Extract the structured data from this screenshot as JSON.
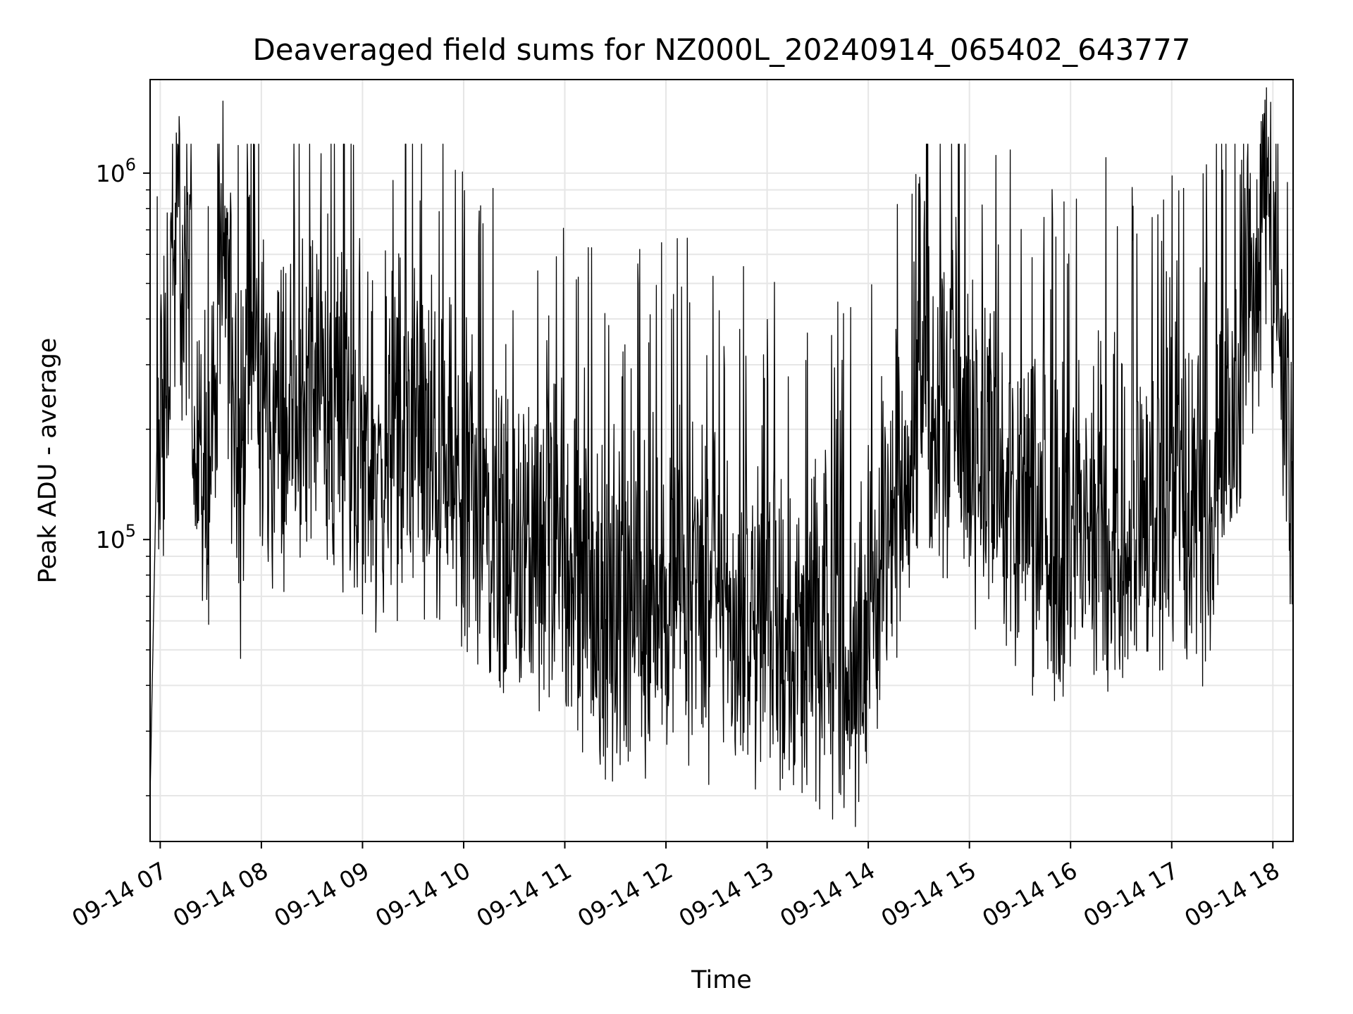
{
  "chart_data": {
    "type": "line",
    "title": "Deaveraged field sums for NZ000L_20240914_065402_643777",
    "xlabel": "Time",
    "ylabel": "Peak ADU - average",
    "yscale": "log",
    "ylim": [
      15000,
      1800000
    ],
    "xlim": [
      "2024-09-14 06:54",
      "2024-09-14 18:12"
    ],
    "grid": true,
    "line_color": "#000000",
    "grid_color": "#e6e6e6",
    "x_ticks": [
      {
        "value": "2024-09-14 07:00",
        "label": "09-14 07"
      },
      {
        "value": "2024-09-14 08:00",
        "label": "09-14 08"
      },
      {
        "value": "2024-09-14 09:00",
        "label": "09-14 09"
      },
      {
        "value": "2024-09-14 10:00",
        "label": "09-14 10"
      },
      {
        "value": "2024-09-14 11:00",
        "label": "09-14 11"
      },
      {
        "value": "2024-09-14 12:00",
        "label": "09-14 12"
      },
      {
        "value": "2024-09-14 13:00",
        "label": "09-14 13"
      },
      {
        "value": "2024-09-14 14:00",
        "label": "09-14 14"
      },
      {
        "value": "2024-09-14 15:00",
        "label": "09-14 15"
      },
      {
        "value": "2024-09-14 16:00",
        "label": "09-14 16"
      },
      {
        "value": "2024-09-14 17:00",
        "label": "09-14 17"
      },
      {
        "value": "2024-09-14 18:00",
        "label": "09-14 18"
      }
    ],
    "y_ticks": [
      {
        "value": 100000,
        "base": "10",
        "exp": "5"
      },
      {
        "value": 1000000,
        "base": "10",
        "exp": "6"
      }
    ],
    "series": [
      {
        "x": [
          "2024-09-14 06:54",
          "2024-09-14 06:58",
          "2024-09-14 07:03",
          "2024-09-14 07:08",
          "2024-09-14 07:13",
          "2024-09-14 07:18",
          "2024-09-14 07:23",
          "2024-09-14 07:28",
          "2024-09-14 07:33",
          "2024-09-14 07:38",
          "2024-09-14 07:43",
          "2024-09-14 07:48",
          "2024-09-14 07:53",
          "2024-09-14 07:58",
          "2024-09-14 08:05",
          "2024-09-14 08:15",
          "2024-09-14 08:25",
          "2024-09-14 08:35",
          "2024-09-14 08:45",
          "2024-09-14 08:55",
          "2024-09-14 09:10",
          "2024-09-14 09:25",
          "2024-09-14 09:40",
          "2024-09-14 09:55",
          "2024-09-14 10:10",
          "2024-09-14 10:25",
          "2024-09-14 10:40",
          "2024-09-14 10:55",
          "2024-09-14 11:10",
          "2024-09-14 11:25",
          "2024-09-14 11:40",
          "2024-09-14 11:55",
          "2024-09-14 12:10",
          "2024-09-14 12:25",
          "2024-09-14 12:40",
          "2024-09-14 12:55",
          "2024-09-14 13:10",
          "2024-09-14 13:25",
          "2024-09-14 13:40",
          "2024-09-14 13:55",
          "2024-09-14 14:10",
          "2024-09-14 14:25",
          "2024-09-14 14:40",
          "2024-09-14 14:55",
          "2024-09-14 15:10",
          "2024-09-14 15:25",
          "2024-09-14 15:40",
          "2024-09-14 15:55",
          "2024-09-14 16:10",
          "2024-09-14 16:25",
          "2024-09-14 16:40",
          "2024-09-14 16:55",
          "2024-09-14 17:10",
          "2024-09-14 17:25",
          "2024-09-14 17:35",
          "2024-09-14 17:45",
          "2024-09-14 17:55",
          "2024-09-14 18:00",
          "2024-09-14 18:05",
          "2024-09-14 18:12"
        ],
        "values": [
          20000,
          180000,
          250000,
          600000,
          550000,
          420000,
          220000,
          150000,
          250000,
          650000,
          300000,
          140000,
          500000,
          300000,
          200000,
          220000,
          250000,
          280000,
          230000,
          200000,
          150000,
          180000,
          170000,
          140000,
          120000,
          110000,
          95000,
          85000,
          80000,
          70000,
          68000,
          75000,
          85000,
          70000,
          65000,
          60000,
          58000,
          55000,
          52000,
          50000,
          110000,
          200000,
          260000,
          240000,
          160000,
          130000,
          110000,
          100000,
          110000,
          130000,
          120000,
          120000,
          130000,
          140000,
          200000,
          450000,
          850000,
          700000,
          280000,
          140000
        ]
      }
    ]
  }
}
